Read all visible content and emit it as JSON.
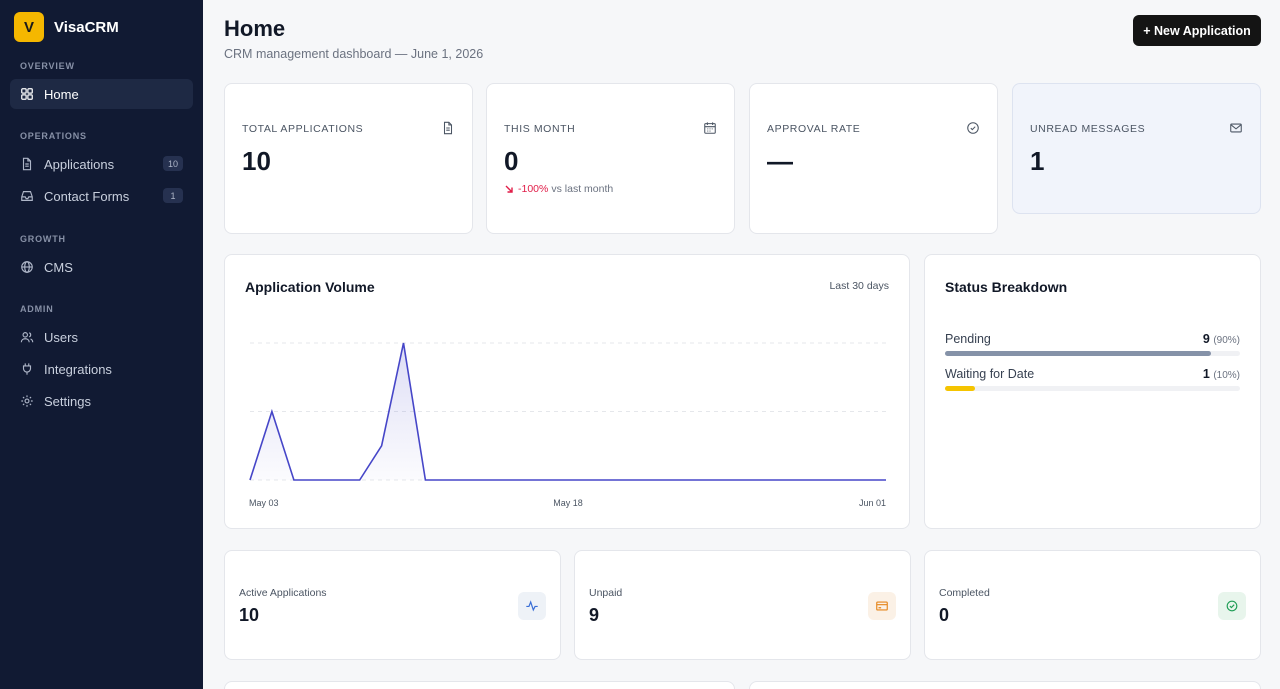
{
  "brand": {
    "logo_letter": "V",
    "name": "VisaCRM",
    "logo_color": "#f5b700"
  },
  "sidebar": {
    "sections": [
      {
        "label": "OVERVIEW"
      },
      {
        "label": "OPERATIONS"
      },
      {
        "label": "GROWTH"
      },
      {
        "label": "ADMIN"
      }
    ],
    "items": [
      {
        "label": "Home",
        "icon": "dashboard-icon",
        "active": true
      },
      {
        "label": "Applications",
        "icon": "file-icon",
        "badge": "10"
      },
      {
        "label": "Contact Forms",
        "icon": "inbox-icon",
        "badge": "1"
      },
      {
        "label": "CMS",
        "icon": "globe-icon"
      },
      {
        "label": "Users",
        "icon": "users-icon"
      },
      {
        "label": "Integrations",
        "icon": "plug-icon"
      },
      {
        "label": "Settings",
        "icon": "gear-icon"
      }
    ]
  },
  "header": {
    "title": "Home",
    "subtitle": "CRM management dashboard — June 1, 2026",
    "new_button": "+ New Application"
  },
  "stats": [
    {
      "label": "TOTAL APPLICATIONS",
      "value": "10",
      "icon": "document-icon"
    },
    {
      "label": "THIS MONTH",
      "value": "0",
      "icon": "calendar-icon",
      "trend_value": "-100%",
      "trend_text": "vs last month"
    },
    {
      "label": "APPROVAL RATE",
      "value": "—",
      "icon": "check-circle-icon"
    },
    {
      "label": "UNREAD MESSAGES",
      "value": "1",
      "icon": "mail-icon"
    }
  ],
  "volume": {
    "title": "Application Volume",
    "range": "Last 30 days"
  },
  "chart_data": {
    "type": "area",
    "title": "Application Volume",
    "xlabel": "",
    "ylabel": "",
    "x_ticks": [
      "May 03",
      "May 18",
      "Jun 01"
    ],
    "ylim": [
      0,
      2
    ],
    "grid": true,
    "color": "#4646c8",
    "values": [
      0,
      1,
      0,
      0,
      0,
      0,
      0.5,
      2,
      0,
      0,
      0,
      0,
      0,
      0,
      0,
      0,
      0,
      0,
      0,
      0,
      0,
      0,
      0,
      0,
      0,
      0,
      0,
      0,
      0,
      0
    ]
  },
  "status": {
    "title": "Status Breakdown",
    "items": [
      {
        "name": "Pending",
        "count": "9",
        "pct": "(90%)",
        "fraction": 0.9,
        "color": "#8592a8"
      },
      {
        "name": "Waiting for Date",
        "count": "1",
        "pct": "(10%)",
        "fraction": 0.1,
        "color": "#f5c400"
      }
    ]
  },
  "mini": [
    {
      "label": "Active Applications",
      "value": "10",
      "icon": "activity-icon",
      "color": "#3b6fd6",
      "bg": "#eef2f7"
    },
    {
      "label": "Unpaid",
      "value": "9",
      "icon": "credit-card-icon",
      "color": "#e5851a",
      "bg": "#fbf1e6"
    },
    {
      "label": "Completed",
      "value": "0",
      "icon": "check-circle-icon",
      "color": "#1f9d55",
      "bg": "#e8f5ec"
    }
  ]
}
